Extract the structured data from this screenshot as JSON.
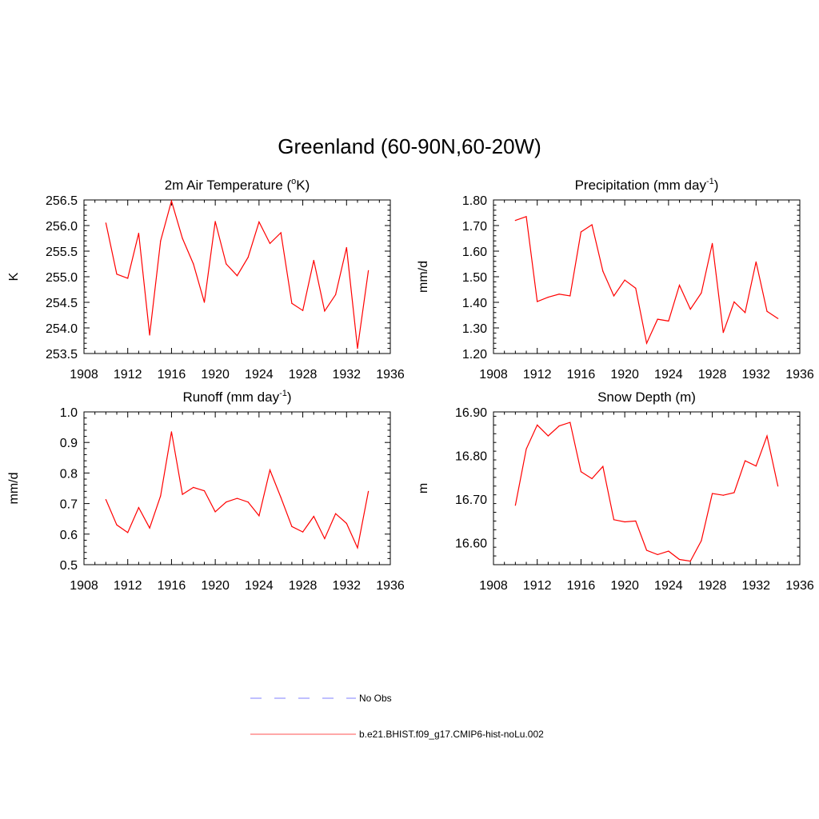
{
  "figure": {
    "title": "Greenland (60-90N,60-20W)"
  },
  "colors": {
    "model": "#ff0000",
    "obs": "#9999ff",
    "axis": "#000000"
  },
  "legend": {
    "items": [
      {
        "label": "No Obs",
        "style": "dashed",
        "color": "#9999ff"
      },
      {
        "label": "b.e21.BHIST.f09_g17.CMIP6-hist-noLu.002",
        "style": "solid",
        "color": "#ff0000"
      }
    ]
  },
  "chart_data": [
    {
      "type": "line",
      "title": "2m Air Temperature (",
      "title_super": "o",
      "title_tail": "K)",
      "ylabel": "K",
      "xlim": [
        1908,
        1936
      ],
      "xticks": [
        1908,
        1912,
        1916,
        1920,
        1924,
        1928,
        1932,
        1936
      ],
      "ylim": [
        253.5,
        256.5
      ],
      "yticks": [
        "253.5",
        "254.0",
        "254.5",
        "255.0",
        "255.5",
        "256.0",
        "256.5"
      ],
      "ytick_values": [
        253.5,
        254.0,
        254.5,
        255.0,
        255.5,
        256.0,
        256.5
      ],
      "x": [
        1910,
        1911,
        1912,
        1913,
        1914,
        1915,
        1916,
        1917,
        1918,
        1919,
        1920,
        1921,
        1922,
        1923,
        1924,
        1925,
        1926,
        1927,
        1928,
        1929,
        1930,
        1931,
        1932,
        1933,
        1934
      ],
      "values": [
        256.05,
        255.05,
        254.97,
        255.85,
        253.86,
        255.7,
        256.48,
        255.75,
        255.25,
        254.5,
        256.08,
        255.25,
        255.02,
        255.38,
        256.07,
        255.65,
        255.86,
        254.48,
        254.34,
        255.32,
        254.33,
        254.65,
        255.57,
        253.6,
        255.12
      ]
    },
    {
      "type": "line",
      "title": "Precipitation (mm day",
      "title_super": "-1",
      "title_tail": ")",
      "ylabel": "mm/d",
      "xlim": [
        1908,
        1936
      ],
      "xticks": [
        1908,
        1912,
        1916,
        1920,
        1924,
        1928,
        1932,
        1936
      ],
      "ylim": [
        1.2,
        1.8
      ],
      "yticks": [
        "1.20",
        "1.30",
        "1.40",
        "1.50",
        "1.60",
        "1.70",
        "1.80"
      ],
      "ytick_values": [
        1.2,
        1.3,
        1.4,
        1.5,
        1.6,
        1.7,
        1.8
      ],
      "x": [
        1910,
        1911,
        1912,
        1913,
        1914,
        1915,
        1916,
        1917,
        1918,
        1919,
        1920,
        1921,
        1922,
        1923,
        1924,
        1925,
        1926,
        1927,
        1928,
        1929,
        1930,
        1931,
        1932,
        1933,
        1934
      ],
      "values": [
        1.72,
        1.735,
        1.403,
        1.42,
        1.432,
        1.425,
        1.675,
        1.703,
        1.522,
        1.425,
        1.487,
        1.455,
        1.24,
        1.334,
        1.327,
        1.467,
        1.373,
        1.437,
        1.63,
        1.282,
        1.402,
        1.36,
        1.558,
        1.365,
        1.337
      ]
    },
    {
      "type": "line",
      "title": "Runoff (mm day",
      "title_super": "-1",
      "title_tail": ")",
      "ylabel": "mm/d",
      "xlim": [
        1908,
        1936
      ],
      "xticks": [
        1908,
        1912,
        1916,
        1920,
        1924,
        1928,
        1932,
        1936
      ],
      "ylim": [
        0.5,
        1.0
      ],
      "yticks": [
        "0.5",
        "0.6",
        "0.7",
        "0.8",
        "0.9",
        "1.0"
      ],
      "ytick_values": [
        0.5,
        0.6,
        0.7,
        0.8,
        0.9,
        1.0
      ],
      "x": [
        1910,
        1911,
        1912,
        1913,
        1914,
        1915,
        1916,
        1917,
        1918,
        1919,
        1920,
        1921,
        1922,
        1923,
        1924,
        1925,
        1926,
        1927,
        1928,
        1929,
        1930,
        1931,
        1932,
        1933,
        1934
      ],
      "values": [
        0.713,
        0.63,
        0.605,
        0.687,
        0.62,
        0.725,
        0.935,
        0.73,
        0.753,
        0.742,
        0.673,
        0.705,
        0.717,
        0.705,
        0.66,
        0.81,
        0.72,
        0.625,
        0.607,
        0.658,
        0.585,
        0.667,
        0.635,
        0.555,
        0.74
      ]
    },
    {
      "type": "line",
      "title": "Snow Depth (m)",
      "title_super": "",
      "title_tail": "",
      "ylabel": "m",
      "xlim": [
        1908,
        1936
      ],
      "xticks": [
        1908,
        1912,
        1916,
        1920,
        1924,
        1928,
        1932,
        1936
      ],
      "ylim": [
        16.55,
        16.9
      ],
      "yticks": [
        "16.60",
        "16.70",
        "16.80",
        "16.90"
      ],
      "ytick_values": [
        16.6,
        16.7,
        16.8,
        16.9
      ],
      "x": [
        1910,
        1911,
        1912,
        1913,
        1914,
        1915,
        1916,
        1917,
        1918,
        1919,
        1920,
        1921,
        1922,
        1923,
        1924,
        1925,
        1926,
        1927,
        1928,
        1929,
        1930,
        1931,
        1932,
        1933,
        1934
      ],
      "values": [
        16.686,
        16.815,
        16.87,
        16.845,
        16.868,
        16.876,
        16.763,
        16.747,
        16.775,
        16.653,
        16.648,
        16.65,
        16.583,
        16.573,
        16.581,
        16.562,
        16.558,
        16.605,
        16.713,
        16.709,
        16.715,
        16.788,
        16.776,
        16.845,
        16.73
      ]
    }
  ]
}
